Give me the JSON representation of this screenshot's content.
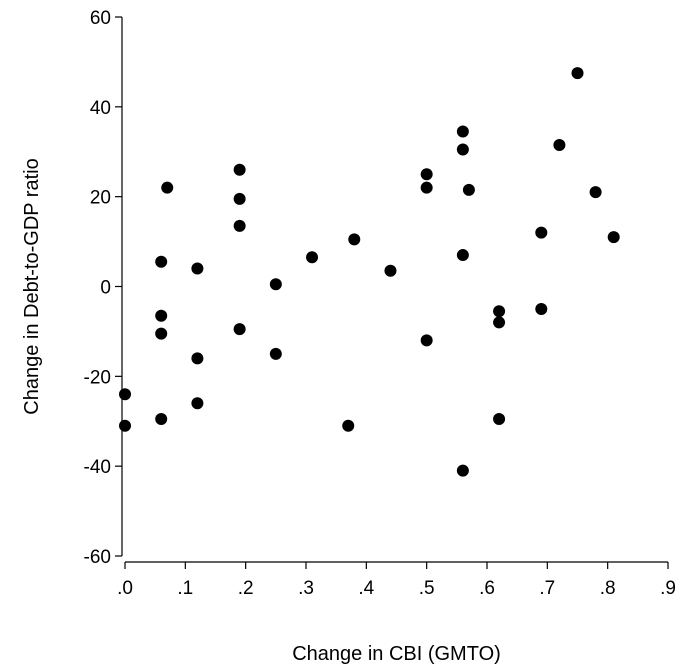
{
  "chart_data": {
    "type": "scatter",
    "title": "",
    "xlabel": "Change in CBI (GMTO)",
    "ylabel": "Change in Debt-to-GDP ratio",
    "xlim": [
      0,
      0.9
    ],
    "ylim": [
      -60,
      60
    ],
    "x_ticks": [
      0,
      0.1,
      0.2,
      0.3,
      0.4,
      0.5,
      0.6,
      0.7,
      0.8,
      0.9
    ],
    "x_tick_labels": [
      ".0",
      ".1",
      ".2",
      ".3",
      ".4",
      ".5",
      ".6",
      ".7",
      ".8",
      ".9"
    ],
    "y_ticks": [
      -60,
      -40,
      -20,
      0,
      20,
      40,
      60
    ],
    "y_tick_labels": [
      "-60",
      "-40",
      "-20",
      "0",
      "20",
      "40",
      "60"
    ],
    "grid": false,
    "marker_color": "#000000",
    "points": [
      {
        "x": 0.0,
        "y": -24
      },
      {
        "x": 0.0,
        "y": -31
      },
      {
        "x": 0.06,
        "y": 5.5
      },
      {
        "x": 0.06,
        "y": -6.5
      },
      {
        "x": 0.06,
        "y": -10.5
      },
      {
        "x": 0.06,
        "y": -29.5
      },
      {
        "x": 0.07,
        "y": 22
      },
      {
        "x": 0.12,
        "y": 4
      },
      {
        "x": 0.12,
        "y": -16
      },
      {
        "x": 0.12,
        "y": -26
      },
      {
        "x": 0.19,
        "y": 26
      },
      {
        "x": 0.19,
        "y": 19.5
      },
      {
        "x": 0.19,
        "y": 13.5
      },
      {
        "x": 0.19,
        "y": -9.5
      },
      {
        "x": 0.25,
        "y": 0.5
      },
      {
        "x": 0.25,
        "y": -15
      },
      {
        "x": 0.31,
        "y": 6.5
      },
      {
        "x": 0.37,
        "y": -31
      },
      {
        "x": 0.38,
        "y": 10.5
      },
      {
        "x": 0.44,
        "y": 3.5
      },
      {
        "x": 0.5,
        "y": 25
      },
      {
        "x": 0.5,
        "y": 22
      },
      {
        "x": 0.5,
        "y": -12
      },
      {
        "x": 0.56,
        "y": 34.5
      },
      {
        "x": 0.56,
        "y": 30.5
      },
      {
        "x": 0.57,
        "y": 21.5
      },
      {
        "x": 0.56,
        "y": 7
      },
      {
        "x": 0.56,
        "y": -41
      },
      {
        "x": 0.62,
        "y": -5.5
      },
      {
        "x": 0.62,
        "y": -8
      },
      {
        "x": 0.62,
        "y": -29.5
      },
      {
        "x": 0.69,
        "y": 12
      },
      {
        "x": 0.69,
        "y": -5
      },
      {
        "x": 0.72,
        "y": 31.5
      },
      {
        "x": 0.75,
        "y": 47.5
      },
      {
        "x": 0.78,
        "y": 21
      },
      {
        "x": 0.81,
        "y": 11
      }
    ]
  }
}
